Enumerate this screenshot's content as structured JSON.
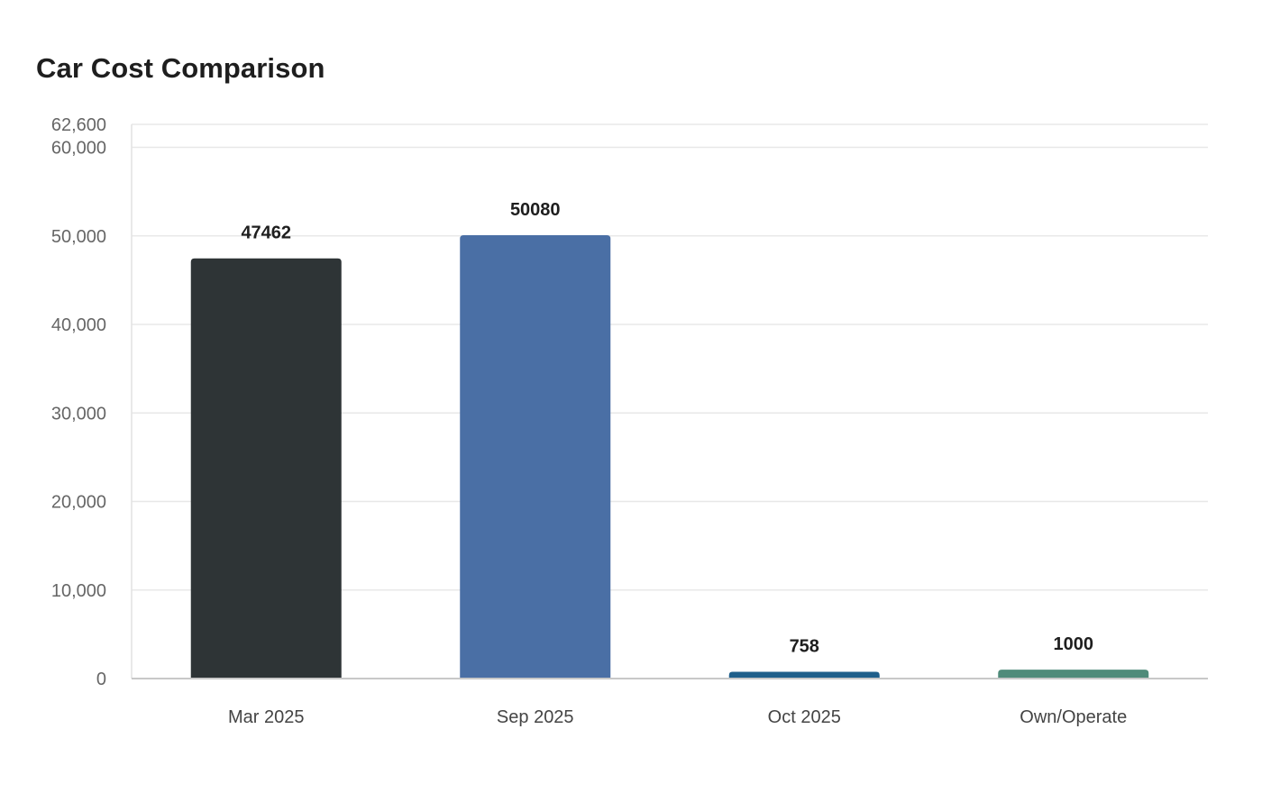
{
  "chart_data": {
    "type": "bar",
    "title": "Car Cost Comparison",
    "xlabel": "",
    "ylabel": "",
    "categories": [
      "Mar 2025",
      "Sep 2025",
      "Oct 2025",
      "Own/Operate"
    ],
    "values": [
      47462,
      50080,
      758,
      1000
    ],
    "data_labels": [
      "47462",
      "50080",
      "758",
      "1000"
    ],
    "colors": [
      "#2e3436",
      "#4a6fa5",
      "#1f5f8b",
      "#4f8b7a"
    ],
    "ylim": [
      0,
      62600
    ],
    "yticks": [
      0,
      10000,
      20000,
      30000,
      40000,
      50000,
      60000,
      62600
    ],
    "ytick_labels": [
      "0",
      "10,000",
      "20,000",
      "30,000",
      "40,000",
      "50,000",
      "60,000",
      "62,600"
    ],
    "grid": true,
    "legend": "none"
  }
}
